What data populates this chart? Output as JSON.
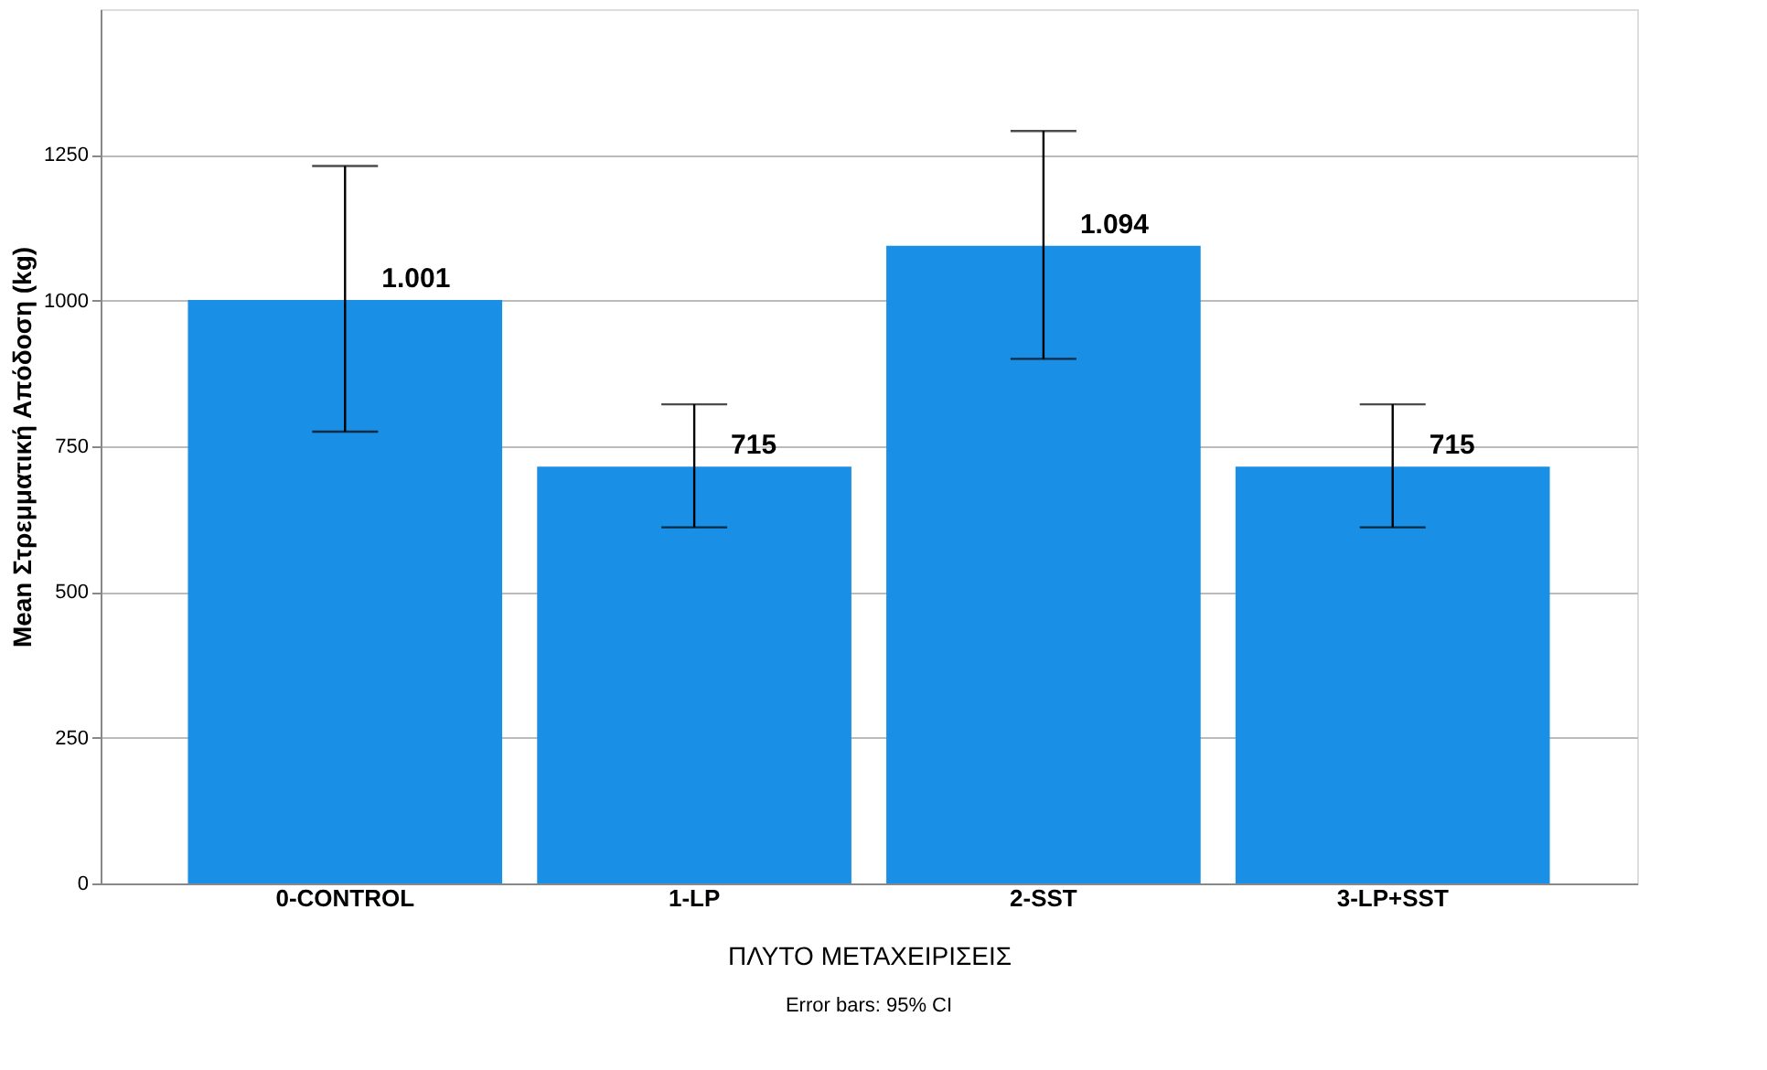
{
  "chart_data": {
    "type": "bar",
    "xlabel": "ΠΛΥΤΟ ΜΕΤΑΧΕΙΡΙΣΕΙΣ",
    "ylabel": "Mean Στρεμματική Απόδοση (kg)",
    "categories": [
      "0-CONTROL",
      "1-LP",
      "2-SST",
      "3-LP+SST"
    ],
    "values": [
      1001,
      715,
      1094,
      715
    ],
    "value_labels": [
      "1.001",
      "715",
      "1.094",
      "715"
    ],
    "errors": [
      [
        775,
        1231
      ],
      [
        611,
        822
      ],
      [
        900,
        1291
      ],
      [
        611,
        822
      ]
    ],
    "color": "#1a8fe6",
    "ylim": [
      0,
      1500
    ],
    "yticks": [
      0,
      250,
      500,
      750,
      1000,
      1250
    ],
    "grid": "y",
    "annotations": [
      "Error bars: 95% CI"
    ]
  }
}
